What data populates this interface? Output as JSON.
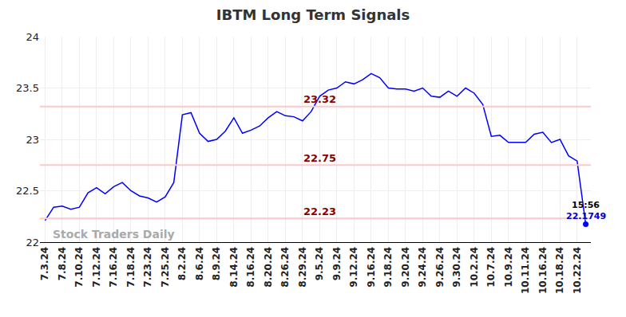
{
  "chart_data": {
    "type": "line",
    "title": "IBTM Long Term Signals",
    "color": "#0000ff",
    "categories": [
      "7.3.24",
      null,
      "7.8.24",
      null,
      "7.10.24",
      null,
      "7.12.24",
      null,
      "7.16.24",
      null,
      "7.18.24",
      null,
      "7.23.24",
      null,
      "7.25.24",
      null,
      "8.2.24",
      null,
      "8.6.24",
      null,
      "8.9.24",
      null,
      "8.14.24",
      null,
      "8.16.24",
      null,
      "8.20.24",
      null,
      "8.26.24",
      null,
      "8.29.24",
      null,
      "9.5.24",
      null,
      "9.9.24",
      null,
      "9.12.24",
      null,
      "9.16.24",
      null,
      "9.18.24",
      null,
      "9.20.24",
      null,
      "9.24.24",
      null,
      "9.26.24",
      null,
      "9.30.24",
      null,
      "10.2.24",
      null,
      "10.7.24",
      null,
      "10.9.24",
      null,
      "10.11.24",
      null,
      "10.16.24",
      null,
      "10.18.24",
      null,
      "10.22.24",
      null
    ],
    "values": [
      22.21,
      22.34,
      22.35,
      22.32,
      22.34,
      22.48,
      22.53,
      22.47,
      22.54,
      22.58,
      22.5,
      22.45,
      22.43,
      22.39,
      22.44,
      22.58,
      23.24,
      23.26,
      23.06,
      22.98,
      23.0,
      23.08,
      23.21,
      23.06,
      23.09,
      23.13,
      23.21,
      23.27,
      23.23,
      23.22,
      23.18,
      23.27,
      23.42,
      23.48,
      23.5,
      23.56,
      23.54,
      23.58,
      23.64,
      23.6,
      23.5,
      23.49,
      23.49,
      23.47,
      23.5,
      23.42,
      23.41,
      23.47,
      23.42,
      23.5,
      23.45,
      23.34,
      23.03,
      23.04,
      22.97,
      22.97,
      22.97,
      23.05,
      23.07,
      22.97,
      23.0,
      22.84,
      22.79,
      22.1749
    ],
    "ylim": [
      22,
      24
    ],
    "yticks": [
      22,
      22.5,
      23,
      23.5,
      24
    ],
    "grid": true,
    "reference_lines": [
      {
        "value": 23.32,
        "label": "23.32"
      },
      {
        "value": 22.75,
        "label": "22.75"
      },
      {
        "value": 22.23,
        "label": "22.23"
      }
    ],
    "last_point": {
      "time": "15:56",
      "value": 22.1749,
      "label": "22.1749"
    },
    "watermark": "Stock Traders Daily"
  }
}
